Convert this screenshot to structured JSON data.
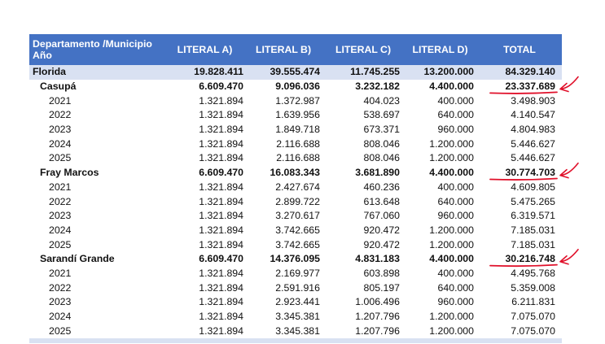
{
  "table": {
    "headers": [
      "Departamento /Municipio Año",
      "LITERAL A)",
      "LITERAL B)",
      "LITERAL C)",
      "LITERAL D)",
      "TOTAL"
    ],
    "department": {
      "name": "Florida",
      "values": [
        "19.828.411",
        "39.555.474",
        "11.745.255",
        "13.200.000",
        "84.329.140"
      ]
    },
    "municipalities": [
      {
        "name": "Casupá",
        "values": [
          "6.609.470",
          "9.096.036",
          "3.232.182",
          "4.400.000",
          "23.337.689"
        ],
        "years": [
          {
            "year": "2021",
            "values": [
              "1.321.894",
              "1.372.987",
              "404.023",
              "400.000",
              "3.498.903"
            ]
          },
          {
            "year": "2022",
            "values": [
              "1.321.894",
              "1.639.956",
              "538.697",
              "640.000",
              "4.140.547"
            ]
          },
          {
            "year": "2023",
            "values": [
              "1.321.894",
              "1.849.718",
              "673.371",
              "960.000",
              "4.804.983"
            ]
          },
          {
            "year": "2024",
            "values": [
              "1.321.894",
              "2.116.688",
              "808.046",
              "1.200.000",
              "5.446.627"
            ]
          },
          {
            "year": "2025",
            "values": [
              "1.321.894",
              "2.116.688",
              "808.046",
              "1.200.000",
              "5.446.627"
            ]
          }
        ]
      },
      {
        "name": "Fray Marcos",
        "values": [
          "6.609.470",
          "16.083.343",
          "3.681.890",
          "4.400.000",
          "30.774.703"
        ],
        "years": [
          {
            "year": "2021",
            "values": [
              "1.321.894",
              "2.427.674",
              "460.236",
              "400.000",
              "4.609.805"
            ]
          },
          {
            "year": "2022",
            "values": [
              "1.321.894",
              "2.899.722",
              "613.648",
              "640.000",
              "5.475.265"
            ]
          },
          {
            "year": "2023",
            "values": [
              "1.321.894",
              "3.270.617",
              "767.060",
              "960.000",
              "6.319.571"
            ]
          },
          {
            "year": "2024",
            "values": [
              "1.321.894",
              "3.742.665",
              "920.472",
              "1.200.000",
              "7.185.031"
            ]
          },
          {
            "year": "2025",
            "values": [
              "1.321.894",
              "3.742.665",
              "920.472",
              "1.200.000",
              "7.185.031"
            ]
          }
        ]
      },
      {
        "name": "Sarandí Grande",
        "values": [
          "6.609.470",
          "14.376.095",
          "4.831.183",
          "4.400.000",
          "30.216.748"
        ],
        "years": [
          {
            "year": "2021",
            "values": [
              "1.321.894",
              "2.169.977",
              "603.898",
              "400.000",
              "4.495.768"
            ]
          },
          {
            "year": "2022",
            "values": [
              "1.321.894",
              "2.591.916",
              "805.197",
              "640.000",
              "5.359.008"
            ]
          },
          {
            "year": "2023",
            "values": [
              "1.321.894",
              "2.923.441",
              "1.006.496",
              "960.000",
              "6.211.831"
            ]
          },
          {
            "year": "2024",
            "values": [
              "1.321.894",
              "3.345.381",
              "1.207.796",
              "1.200.000",
              "7.075.070"
            ]
          },
          {
            "year": "2025",
            "values": [
              "1.321.894",
              "3.345.381",
              "1.207.796",
              "1.200.000",
              "7.075.070"
            ]
          }
        ]
      }
    ]
  },
  "annotation_color": "#e0102a"
}
